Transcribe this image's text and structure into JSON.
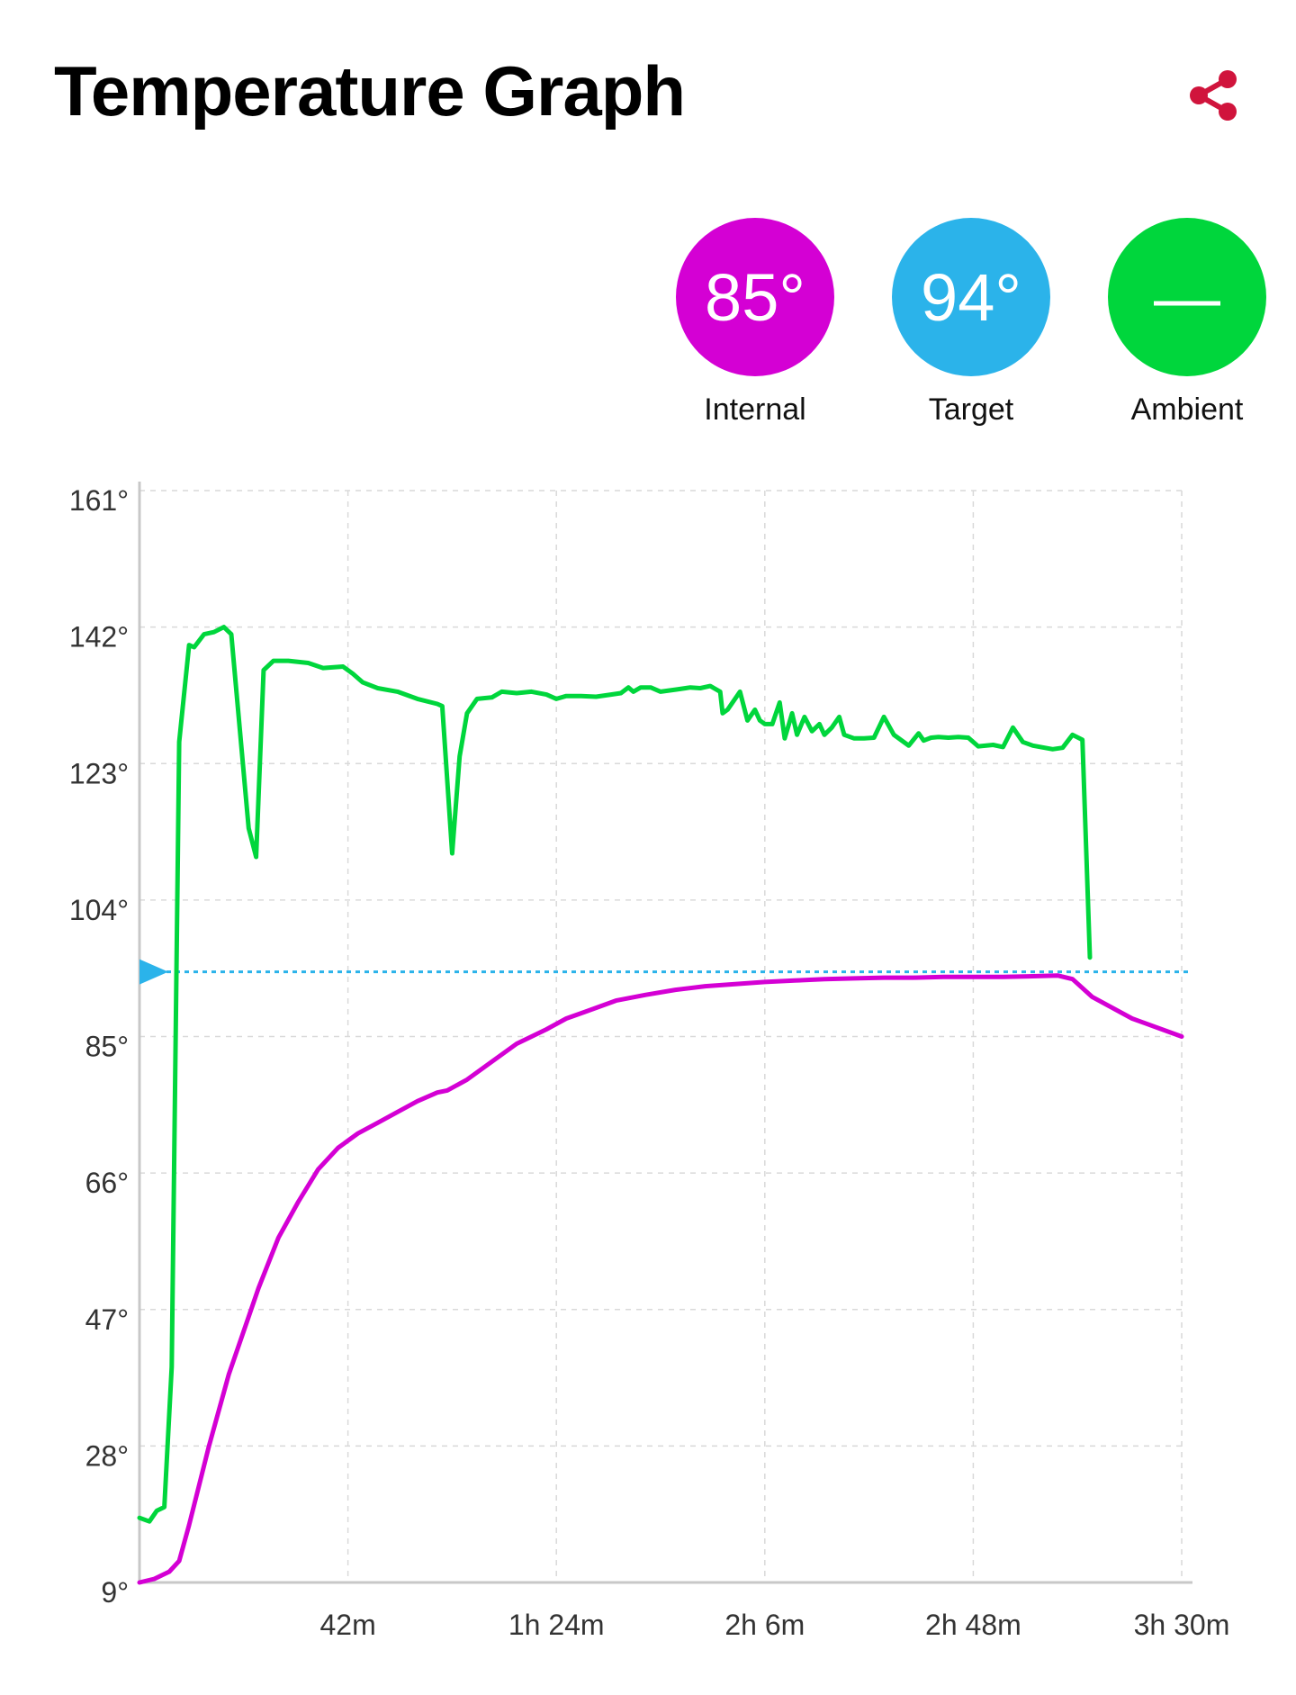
{
  "header": {
    "title": "Temperature Graph",
    "share_icon": "share-icon",
    "share_color": "#d0143c"
  },
  "stats": [
    {
      "value": "85°",
      "label": "Internal",
      "color": "#d400d4"
    },
    {
      "value": "94°",
      "label": "Target",
      "color": "#2bb3ea"
    },
    {
      "value": "—",
      "label": "Ambient",
      "color": "#00d63c"
    }
  ],
  "chart_data": {
    "type": "line",
    "x_unit": "minutes",
    "xlim": [
      0,
      210
    ],
    "ylim": [
      9,
      161
    ],
    "x_ticks": [
      42,
      84,
      126,
      168,
      210
    ],
    "x_tick_labels": [
      "42m",
      "1h 24m",
      "2h 6m",
      "2h 48m",
      "3h 30m"
    ],
    "y_ticks": [
      9,
      28,
      47,
      66,
      85,
      104,
      123,
      142,
      161
    ],
    "y_tick_labels": [
      "9°",
      "28°",
      "47°",
      "66°",
      "85°",
      "104°",
      "123°",
      "142°",
      "161°"
    ],
    "grid": true,
    "target_line": {
      "value": 94,
      "color": "#2bb3ea"
    },
    "series": [
      {
        "name": "Internal",
        "color": "#d400d4",
        "points": [
          [
            0,
            9
          ],
          [
            3,
            9.5
          ],
          [
            6,
            10.5
          ],
          [
            8,
            12
          ],
          [
            10,
            17
          ],
          [
            14,
            28
          ],
          [
            18,
            38
          ],
          [
            20,
            42
          ],
          [
            24,
            50
          ],
          [
            28,
            57
          ],
          [
            32,
            62
          ],
          [
            36,
            66.5
          ],
          [
            40,
            69.5
          ],
          [
            44,
            71.5
          ],
          [
            48,
            73
          ],
          [
            52,
            74.5
          ],
          [
            56,
            76
          ],
          [
            60,
            77.2
          ],
          [
            62,
            77.5
          ],
          [
            66,
            79
          ],
          [
            70,
            81
          ],
          [
            76,
            84
          ],
          [
            82,
            86
          ],
          [
            86,
            87.5
          ],
          [
            90,
            88.5
          ],
          [
            96,
            90
          ],
          [
            102,
            90.8
          ],
          [
            108,
            91.5
          ],
          [
            114,
            92
          ],
          [
            120,
            92.3
          ],
          [
            126,
            92.6
          ],
          [
            132,
            92.8
          ],
          [
            138,
            93
          ],
          [
            144,
            93.1
          ],
          [
            150,
            93.2
          ],
          [
            156,
            93.2
          ],
          [
            162,
            93.3
          ],
          [
            168,
            93.3
          ],
          [
            174,
            93.3
          ],
          [
            180,
            93.4
          ],
          [
            185,
            93.5
          ],
          [
            188,
            93
          ],
          [
            192,
            90.5
          ],
          [
            200,
            87.5
          ],
          [
            210,
            85
          ]
        ]
      },
      {
        "name": "Ambient",
        "color": "#00d63c",
        "points": [
          [
            0,
            18
          ],
          [
            2,
            17.5
          ],
          [
            3.5,
            19
          ],
          [
            5,
            19.5
          ],
          [
            6.5,
            39
          ],
          [
            8,
            126
          ],
          [
            10,
            139.5
          ],
          [
            11,
            139.2
          ],
          [
            13,
            141
          ],
          [
            15,
            141.3
          ],
          [
            17,
            142
          ],
          [
            18.5,
            141
          ],
          [
            22,
            114
          ],
          [
            23.5,
            110
          ],
          [
            25,
            136
          ],
          [
            27,
            137.3
          ],
          [
            30,
            137.3
          ],
          [
            34,
            137
          ],
          [
            37,
            136.3
          ],
          [
            41,
            136.5
          ],
          [
            43,
            135.5
          ],
          [
            45,
            134.3
          ],
          [
            48,
            133.5
          ],
          [
            52,
            133
          ],
          [
            56,
            132
          ],
          [
            60,
            131.3
          ],
          [
            61,
            131
          ],
          [
            63,
            110.5
          ],
          [
            64.5,
            124
          ],
          [
            66,
            130
          ],
          [
            68,
            132
          ],
          [
            71,
            132.2
          ],
          [
            73,
            133
          ],
          [
            76,
            132.8
          ],
          [
            79,
            133
          ],
          [
            82,
            132.6
          ],
          [
            84,
            132
          ],
          [
            86,
            132.4
          ],
          [
            89,
            132.4
          ],
          [
            92,
            132.3
          ],
          [
            95,
            132.6
          ],
          [
            97,
            132.8
          ],
          [
            98.5,
            133.6
          ],
          [
            99.5,
            133
          ],
          [
            101,
            133.6
          ],
          [
            103,
            133.6
          ],
          [
            105,
            133
          ],
          [
            108,
            133.3
          ],
          [
            111,
            133.6
          ],
          [
            113,
            133.5
          ],
          [
            115,
            133.8
          ],
          [
            117,
            133
          ],
          [
            117.5,
            130
          ],
          [
            118.5,
            130.5
          ],
          [
            121,
            133
          ],
          [
            122.5,
            129
          ],
          [
            124,
            130.5
          ],
          [
            125,
            129
          ],
          [
            126,
            128.5
          ],
          [
            127.5,
            128.5
          ],
          [
            129,
            131.5
          ],
          [
            130,
            126.5
          ],
          [
            131.5,
            130
          ],
          [
            132.5,
            127
          ],
          [
            134,
            129.5
          ],
          [
            135.5,
            127.5
          ],
          [
            137,
            128.5
          ],
          [
            138,
            127
          ],
          [
            139.5,
            128
          ],
          [
            141,
            129.5
          ],
          [
            142,
            127
          ],
          [
            144,
            126.5
          ],
          [
            146,
            126.5
          ],
          [
            148,
            126.6
          ],
          [
            150,
            129.5
          ],
          [
            152,
            127
          ],
          [
            154,
            126
          ],
          [
            155,
            125.5
          ],
          [
            157,
            127.2
          ],
          [
            158,
            126.2
          ],
          [
            159.5,
            126.6
          ],
          [
            161,
            126.7
          ],
          [
            163,
            126.6
          ],
          [
            165,
            126.7
          ],
          [
            167,
            126.6
          ],
          [
            169,
            125.4
          ],
          [
            172,
            125.6
          ],
          [
            174,
            125.3
          ],
          [
            176,
            128
          ],
          [
            178,
            126
          ],
          [
            180,
            125.5
          ],
          [
            184,
            125
          ],
          [
            186,
            125.2
          ],
          [
            188,
            127
          ],
          [
            190,
            126.3
          ],
          [
            191.5,
            96
          ]
        ]
      }
    ]
  }
}
